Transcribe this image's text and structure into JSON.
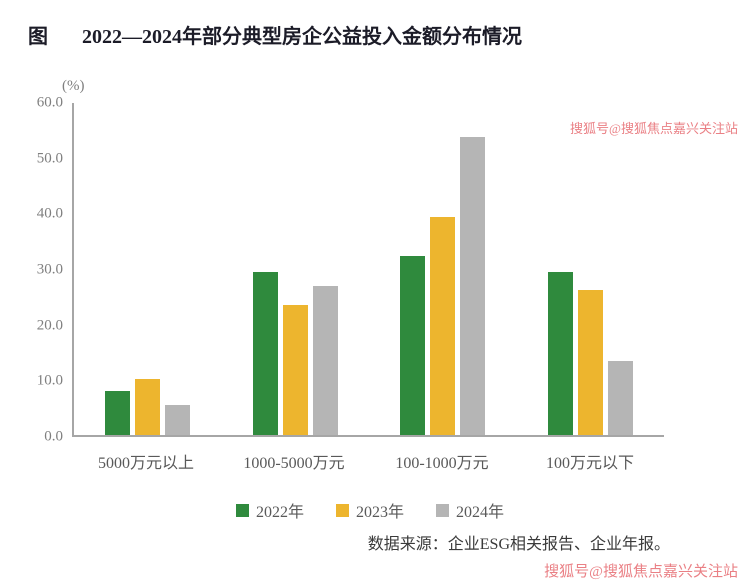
{
  "header": {
    "figure_label": "图",
    "title": "2022—2024年部分典型房企公益投入金额分布情况"
  },
  "source_note": "数据来源：企业ESG相关报告、企业年报。",
  "watermark": {
    "top": "搜狐号@搜狐焦点嘉兴关注站",
    "bottom": "搜狐号@搜狐焦点嘉兴关注站"
  },
  "chart_data": {
    "type": "bar",
    "title": "图 2022—2024年部分典型房企公益投入金额分布情况",
    "unit_label": "(%)",
    "categories": [
      "5000万元以上",
      "1000-5000万元",
      "100-1000万元",
      "100万元以下"
    ],
    "series": [
      {
        "name": "2022年",
        "color": "#2f8a3d",
        "values": [
          7.9,
          29.5,
          32.3,
          29.5
        ]
      },
      {
        "name": "2023年",
        "color": "#edb52e",
        "values": [
          10.2,
          23.5,
          39.4,
          26.2
        ]
      },
      {
        "name": "2024年",
        "color": "#b5b5b5",
        "values": [
          5.4,
          26.9,
          53.9,
          13.3
        ]
      }
    ],
    "ylim": [
      0,
      60
    ],
    "y_ticks": [
      "0.0",
      "10.0",
      "20.0",
      "30.0",
      "40.0",
      "50.0",
      "60.0"
    ],
    "xlabel": "",
    "ylabel": "(%)",
    "legend_position": "bottom",
    "grid": false
  }
}
